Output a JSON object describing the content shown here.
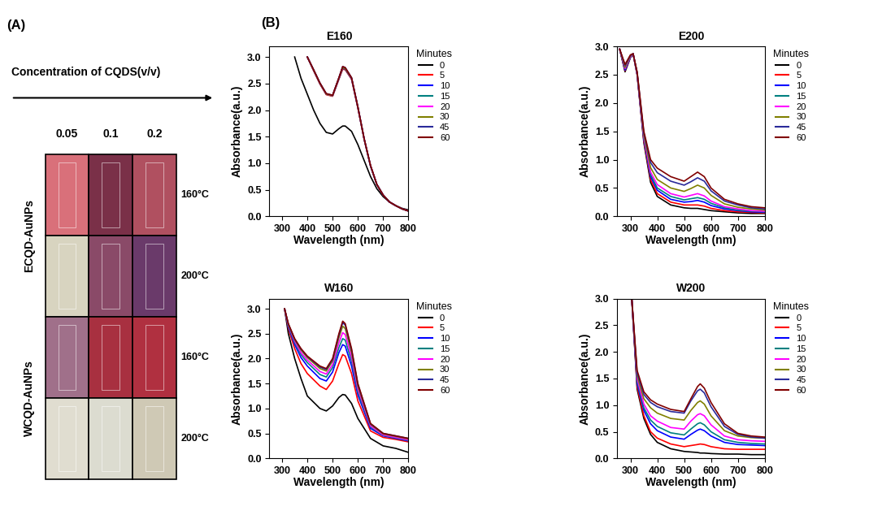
{
  "panel_A": {
    "label": "(A)",
    "header": "Concentration of CQDS(v/v)",
    "columns": [
      "0.05",
      "0.1",
      "0.2"
    ],
    "groups": [
      {
        "label": "ECQD-AuNPs",
        "rows": [
          {
            "label": "160°C",
            "colors": [
              "#d9707a",
              "#7a3048",
              "#b05060"
            ]
          },
          {
            "label": "200°C",
            "colors": [
              "#d8d4c0",
              "#8a4a68",
              "#6a3a6a"
            ]
          }
        ]
      },
      {
        "label": "WCQD-AuNPs",
        "rows": [
          {
            "label": "160°C",
            "colors": [
              "#a0708a",
              "#a83040",
              "#b03040"
            ]
          },
          {
            "label": "200°C",
            "colors": [
              "#e0ddd0",
              "#dcdcd0",
              "#cfc9b5"
            ]
          }
        ]
      }
    ]
  },
  "panel_B": {
    "label": "(B)"
  },
  "chart_data": [
    {
      "type": "line",
      "title": "E160",
      "x_label": "Wavelength (nm)",
      "y_label": "Absorbance(a.u.)",
      "x": [
        350,
        375,
        400,
        425,
        450,
        475,
        500,
        525,
        540,
        550,
        575,
        600,
        625,
        650,
        675,
        700,
        725,
        750,
        775,
        800
      ],
      "xlim": [
        250,
        800
      ],
      "xticks": [
        300,
        400,
        500,
        600,
        700,
        800
      ],
      "ylim": [
        0,
        3.2
      ],
      "yticks": [
        {
          "value": 0,
          "label": "0.0"
        },
        {
          "value": 0.5,
          "label": "0.5"
        },
        {
          "value": 1.0,
          "label": "1.0"
        },
        {
          "value": 1.5,
          "label": "1.5"
        },
        {
          "value": 2.0,
          "label": "2.0"
        },
        {
          "value": 2.5,
          "label": "2.5"
        },
        {
          "value": 3.0,
          "label": "3.0"
        }
      ],
      "legend": "upper left",
      "legend_title": "Minutes",
      "series": [
        {
          "name": "0",
          "color": "#000000",
          "values": [
            3.0,
            2.6,
            2.3,
            2.0,
            1.75,
            1.58,
            1.55,
            1.65,
            1.7,
            1.7,
            1.6,
            1.35,
            1.05,
            0.75,
            0.52,
            0.37,
            0.27,
            0.2,
            0.15,
            0.12
          ]
        },
        {
          "name": "5",
          "color": "#ff0000",
          "values": [
            null,
            null,
            3.0,
            2.74,
            2.49,
            2.29,
            2.26,
            2.58,
            2.77,
            2.76,
            2.58,
            2.04,
            1.45,
            0.95,
            0.6,
            0.4,
            0.27,
            0.2,
            0.14,
            0.1
          ]
        },
        {
          "name": "10",
          "color": "#0000ff",
          "values": [
            null,
            null,
            3.0,
            2.75,
            2.5,
            2.3,
            2.27,
            2.59,
            2.79,
            2.77,
            2.59,
            2.05,
            1.45,
            0.95,
            0.6,
            0.4,
            0.27,
            0.2,
            0.14,
            0.1
          ]
        },
        {
          "name": "15",
          "color": "#008080",
          "values": [
            null,
            null,
            3.0,
            2.75,
            2.5,
            2.3,
            2.27,
            2.6,
            2.8,
            2.78,
            2.6,
            2.05,
            1.45,
            0.95,
            0.6,
            0.4,
            0.27,
            0.2,
            0.14,
            0.1
          ]
        },
        {
          "name": "20",
          "color": "#ff00ff",
          "values": [
            null,
            null,
            3.0,
            2.75,
            2.5,
            2.3,
            2.27,
            2.6,
            2.81,
            2.79,
            2.6,
            2.05,
            1.45,
            0.95,
            0.6,
            0.4,
            0.27,
            0.2,
            0.14,
            0.1
          ]
        },
        {
          "name": "30",
          "color": "#808000",
          "values": [
            null,
            null,
            3.0,
            2.75,
            2.5,
            2.3,
            2.27,
            2.6,
            2.8,
            2.78,
            2.6,
            2.05,
            1.45,
            0.95,
            0.6,
            0.4,
            0.27,
            0.2,
            0.14,
            0.1
          ]
        },
        {
          "name": "45",
          "color": "#2a2a9a",
          "values": [
            null,
            null,
            3.0,
            2.76,
            2.51,
            2.31,
            2.28,
            2.61,
            2.82,
            2.8,
            2.61,
            2.06,
            1.46,
            0.95,
            0.6,
            0.4,
            0.27,
            0.2,
            0.14,
            0.1
          ]
        },
        {
          "name": "60",
          "color": "#800000",
          "values": [
            null,
            null,
            3.0,
            2.76,
            2.51,
            2.31,
            2.28,
            2.61,
            2.82,
            2.8,
            2.61,
            2.06,
            1.46,
            0.96,
            0.6,
            0.4,
            0.27,
            0.2,
            0.14,
            0.1
          ]
        }
      ]
    },
    {
      "type": "line",
      "title": "E200",
      "x_label": "Wavelength (nm)",
      "y_label": "Absorbance(a.u.)",
      "x": [
        260,
        280,
        300,
        310,
        325,
        350,
        375,
        400,
        450,
        500,
        525,
        550,
        575,
        600,
        650,
        700,
        750,
        800
      ],
      "xlim": [
        250,
        800
      ],
      "xticks": [
        300,
        400,
        500,
        600,
        700,
        800
      ],
      "ylim": [
        0,
        3.0
      ],
      "yticks": [
        {
          "value": 0,
          "label": "0.0"
        },
        {
          "value": 0.5,
          "label": "0.5"
        },
        {
          "value": 1.0,
          "label": "1.0"
        },
        {
          "value": 1.5,
          "label": "1.5"
        },
        {
          "value": 2.0,
          "label": "2.0"
        },
        {
          "value": 2.5,
          "label": "2.5"
        },
        {
          "value": 3.0,
          "label": "3.0"
        }
      ],
      "legend": "upper left",
      "legend_title": "Minutes",
      "series": [
        {
          "name": "0",
          "color": "#000000",
          "values": [
            2.95,
            2.55,
            2.8,
            2.87,
            2.5,
            1.3,
            0.6,
            0.35,
            0.2,
            0.15,
            0.14,
            0.14,
            0.12,
            0.1,
            0.08,
            0.06,
            0.05,
            0.05
          ]
        },
        {
          "name": "5",
          "color": "#ff0000",
          "values": [
            2.95,
            2.57,
            2.81,
            2.87,
            2.5,
            1.33,
            0.65,
            0.4,
            0.25,
            0.2,
            0.2,
            0.2,
            0.18,
            0.14,
            0.1,
            0.08,
            0.07,
            0.06
          ]
        },
        {
          "name": "10",
          "color": "#0000ff",
          "values": [
            2.95,
            2.58,
            2.81,
            2.87,
            2.51,
            1.36,
            0.7,
            0.46,
            0.3,
            0.25,
            0.26,
            0.28,
            0.25,
            0.19,
            0.13,
            0.1,
            0.08,
            0.07
          ]
        },
        {
          "name": "15",
          "color": "#008080",
          "values": [
            2.95,
            2.6,
            2.82,
            2.87,
            2.52,
            1.38,
            0.74,
            0.5,
            0.35,
            0.29,
            0.31,
            0.33,
            0.3,
            0.23,
            0.15,
            0.11,
            0.09,
            0.08
          ]
        },
        {
          "name": "20",
          "color": "#ff00ff",
          "values": [
            2.95,
            2.61,
            2.82,
            2.87,
            2.52,
            1.4,
            0.78,
            0.56,
            0.4,
            0.34,
            0.37,
            0.4,
            0.36,
            0.27,
            0.17,
            0.13,
            0.1,
            0.09
          ]
        },
        {
          "name": "30",
          "color": "#808000",
          "values": [
            2.95,
            2.63,
            2.83,
            2.87,
            2.53,
            1.43,
            0.86,
            0.65,
            0.5,
            0.44,
            0.49,
            0.55,
            0.5,
            0.37,
            0.22,
            0.16,
            0.13,
            0.11
          ]
        },
        {
          "name": "45",
          "color": "#2a2a9a",
          "values": [
            2.95,
            2.66,
            2.84,
            2.87,
            2.54,
            1.47,
            0.95,
            0.77,
            0.62,
            0.55,
            0.61,
            0.68,
            0.62,
            0.45,
            0.27,
            0.2,
            0.15,
            0.13
          ]
        },
        {
          "name": "60",
          "color": "#800000",
          "values": [
            2.95,
            2.68,
            2.85,
            2.87,
            2.55,
            1.5,
            1.0,
            0.85,
            0.7,
            0.62,
            0.7,
            0.78,
            0.7,
            0.5,
            0.3,
            0.22,
            0.17,
            0.15
          ]
        }
      ]
    },
    {
      "type": "line",
      "title": "W160",
      "x_label": "Wavelength (nm)",
      "y_label": "Absorbance(a.u.)",
      "x": [
        310,
        325,
        350,
        375,
        400,
        450,
        475,
        500,
        525,
        540,
        550,
        575,
        600,
        650,
        700,
        750,
        800
      ],
      "xlim": [
        250,
        800
      ],
      "xticks": [
        300,
        400,
        500,
        600,
        700,
        800
      ],
      "ylim": [
        0,
        3.2
      ],
      "yticks": [
        {
          "value": 0,
          "label": "0.0"
        },
        {
          "value": 0.5,
          "label": "0.5"
        },
        {
          "value": 1.0,
          "label": "1.0"
        },
        {
          "value": 1.5,
          "label": "1.5"
        },
        {
          "value": 2.0,
          "label": "2.0"
        },
        {
          "value": 2.5,
          "label": "2.5"
        },
        {
          "value": 3.0,
          "label": "3.0"
        }
      ],
      "legend": "upper left",
      "legend_title": "Minutes",
      "series": [
        {
          "name": "0",
          "color": "#000000",
          "values": [
            3.0,
            2.5,
            2.0,
            1.6,
            1.25,
            1.0,
            0.95,
            1.05,
            1.22,
            1.28,
            1.27,
            1.1,
            0.8,
            0.4,
            0.25,
            0.2,
            0.12
          ]
        },
        {
          "name": "5",
          "color": "#ff0000",
          "values": [
            3.0,
            2.6,
            2.2,
            1.9,
            1.7,
            1.45,
            1.38,
            1.55,
            1.9,
            2.08,
            2.05,
            1.7,
            1.15,
            0.55,
            0.42,
            0.38,
            0.33
          ]
        },
        {
          "name": "10",
          "color": "#0000ff",
          "values": [
            3.0,
            2.63,
            2.28,
            2.02,
            1.85,
            1.6,
            1.55,
            1.73,
            2.12,
            2.28,
            2.25,
            1.85,
            1.27,
            0.6,
            0.45,
            0.4,
            0.35
          ]
        },
        {
          "name": "15",
          "color": "#008080",
          "values": [
            3.0,
            2.65,
            2.32,
            2.08,
            1.92,
            1.68,
            1.63,
            1.82,
            2.22,
            2.4,
            2.37,
            1.95,
            1.33,
            0.63,
            0.46,
            0.41,
            0.36
          ]
        },
        {
          "name": "20",
          "color": "#ff00ff",
          "values": [
            3.0,
            2.67,
            2.35,
            2.12,
            1.97,
            1.74,
            1.69,
            1.88,
            2.32,
            2.52,
            2.48,
            2.03,
            1.39,
            0.65,
            0.47,
            0.42,
            0.37
          ]
        },
        {
          "name": "30",
          "color": "#808000",
          "values": [
            3.0,
            2.68,
            2.38,
            2.17,
            2.02,
            1.8,
            1.75,
            1.95,
            2.42,
            2.65,
            2.6,
            2.12,
            1.45,
            0.68,
            0.49,
            0.44,
            0.39
          ]
        },
        {
          "name": "45",
          "color": "#2a2a9a",
          "values": [
            3.0,
            2.69,
            2.39,
            2.19,
            2.04,
            1.83,
            1.78,
            1.98,
            2.47,
            2.72,
            2.67,
            2.17,
            1.48,
            0.69,
            0.5,
            0.45,
            0.4
          ]
        },
        {
          "name": "60",
          "color": "#800000",
          "values": [
            3.0,
            2.7,
            2.4,
            2.2,
            2.05,
            1.85,
            1.8,
            2.0,
            2.5,
            2.75,
            2.7,
            2.2,
            1.5,
            0.7,
            0.5,
            0.45,
            0.4
          ]
        }
      ]
    },
    {
      "type": "line",
      "title": "W200",
      "x_label": "Wavelength (nm)",
      "y_label": "Absorbance(a.u.)",
      "x": [
        305,
        325,
        350,
        375,
        400,
        450,
        500,
        525,
        550,
        560,
        575,
        600,
        650,
        700,
        750,
        800
      ],
      "xlim": [
        250,
        800
      ],
      "xticks": [
        300,
        400,
        500,
        600,
        700,
        800
      ],
      "ylim": [
        0,
        3.0
      ],
      "yticks": [
        {
          "value": 0,
          "label": "0.0"
        },
        {
          "value": 0.5,
          "label": "0.5"
        },
        {
          "value": 1.0,
          "label": "1.0"
        },
        {
          "value": 1.5,
          "label": "1.5"
        },
        {
          "value": 2.0,
          "label": "2.0"
        },
        {
          "value": 2.5,
          "label": "2.5"
        },
        {
          "value": 3.0,
          "label": "3.0"
        }
      ],
      "legend": "upper left",
      "legend_title": "Minutes",
      "series": [
        {
          "name": "0",
          "color": "#000000",
          "values": [
            3.0,
            1.3,
            0.75,
            0.45,
            0.3,
            0.18,
            0.13,
            0.12,
            0.11,
            0.1,
            0.1,
            0.09,
            0.08,
            0.08,
            0.07,
            0.07
          ]
        },
        {
          "name": "5",
          "color": "#ff0000",
          "values": [
            3.0,
            1.35,
            0.8,
            0.5,
            0.38,
            0.27,
            0.22,
            0.24,
            0.26,
            0.27,
            0.26,
            0.22,
            0.18,
            0.17,
            0.17,
            0.17
          ]
        },
        {
          "name": "10",
          "color": "#0000ff",
          "values": [
            3.0,
            1.4,
            0.9,
            0.65,
            0.52,
            0.4,
            0.36,
            0.45,
            0.53,
            0.55,
            0.52,
            0.42,
            0.3,
            0.26,
            0.25,
            0.24
          ]
        },
        {
          "name": "15",
          "color": "#008080",
          "values": [
            3.0,
            1.45,
            0.95,
            0.72,
            0.6,
            0.48,
            0.44,
            0.55,
            0.65,
            0.67,
            0.63,
            0.5,
            0.35,
            0.3,
            0.28,
            0.27
          ]
        },
        {
          "name": "20",
          "color": "#ff00ff",
          "values": [
            3.0,
            1.5,
            1.02,
            0.8,
            0.7,
            0.58,
            0.55,
            0.7,
            0.82,
            0.84,
            0.8,
            0.63,
            0.42,
            0.35,
            0.33,
            0.32
          ]
        },
        {
          "name": "30",
          "color": "#808000",
          "values": [
            3.0,
            1.55,
            1.12,
            0.95,
            0.85,
            0.75,
            0.72,
            0.9,
            1.05,
            1.08,
            1.02,
            0.8,
            0.52,
            0.42,
            0.39,
            0.38
          ]
        },
        {
          "name": "45",
          "color": "#2a2a9a",
          "values": [
            3.0,
            1.6,
            1.2,
            1.05,
            0.97,
            0.88,
            0.85,
            1.08,
            1.27,
            1.3,
            1.23,
            0.97,
            0.6,
            0.45,
            0.4,
            0.38
          ]
        },
        {
          "name": "60",
          "color": "#800000",
          "values": [
            3.0,
            1.65,
            1.25,
            1.1,
            1.02,
            0.92,
            0.88,
            1.12,
            1.35,
            1.4,
            1.32,
            1.05,
            0.65,
            0.47,
            0.42,
            0.4
          ]
        }
      ]
    }
  ]
}
